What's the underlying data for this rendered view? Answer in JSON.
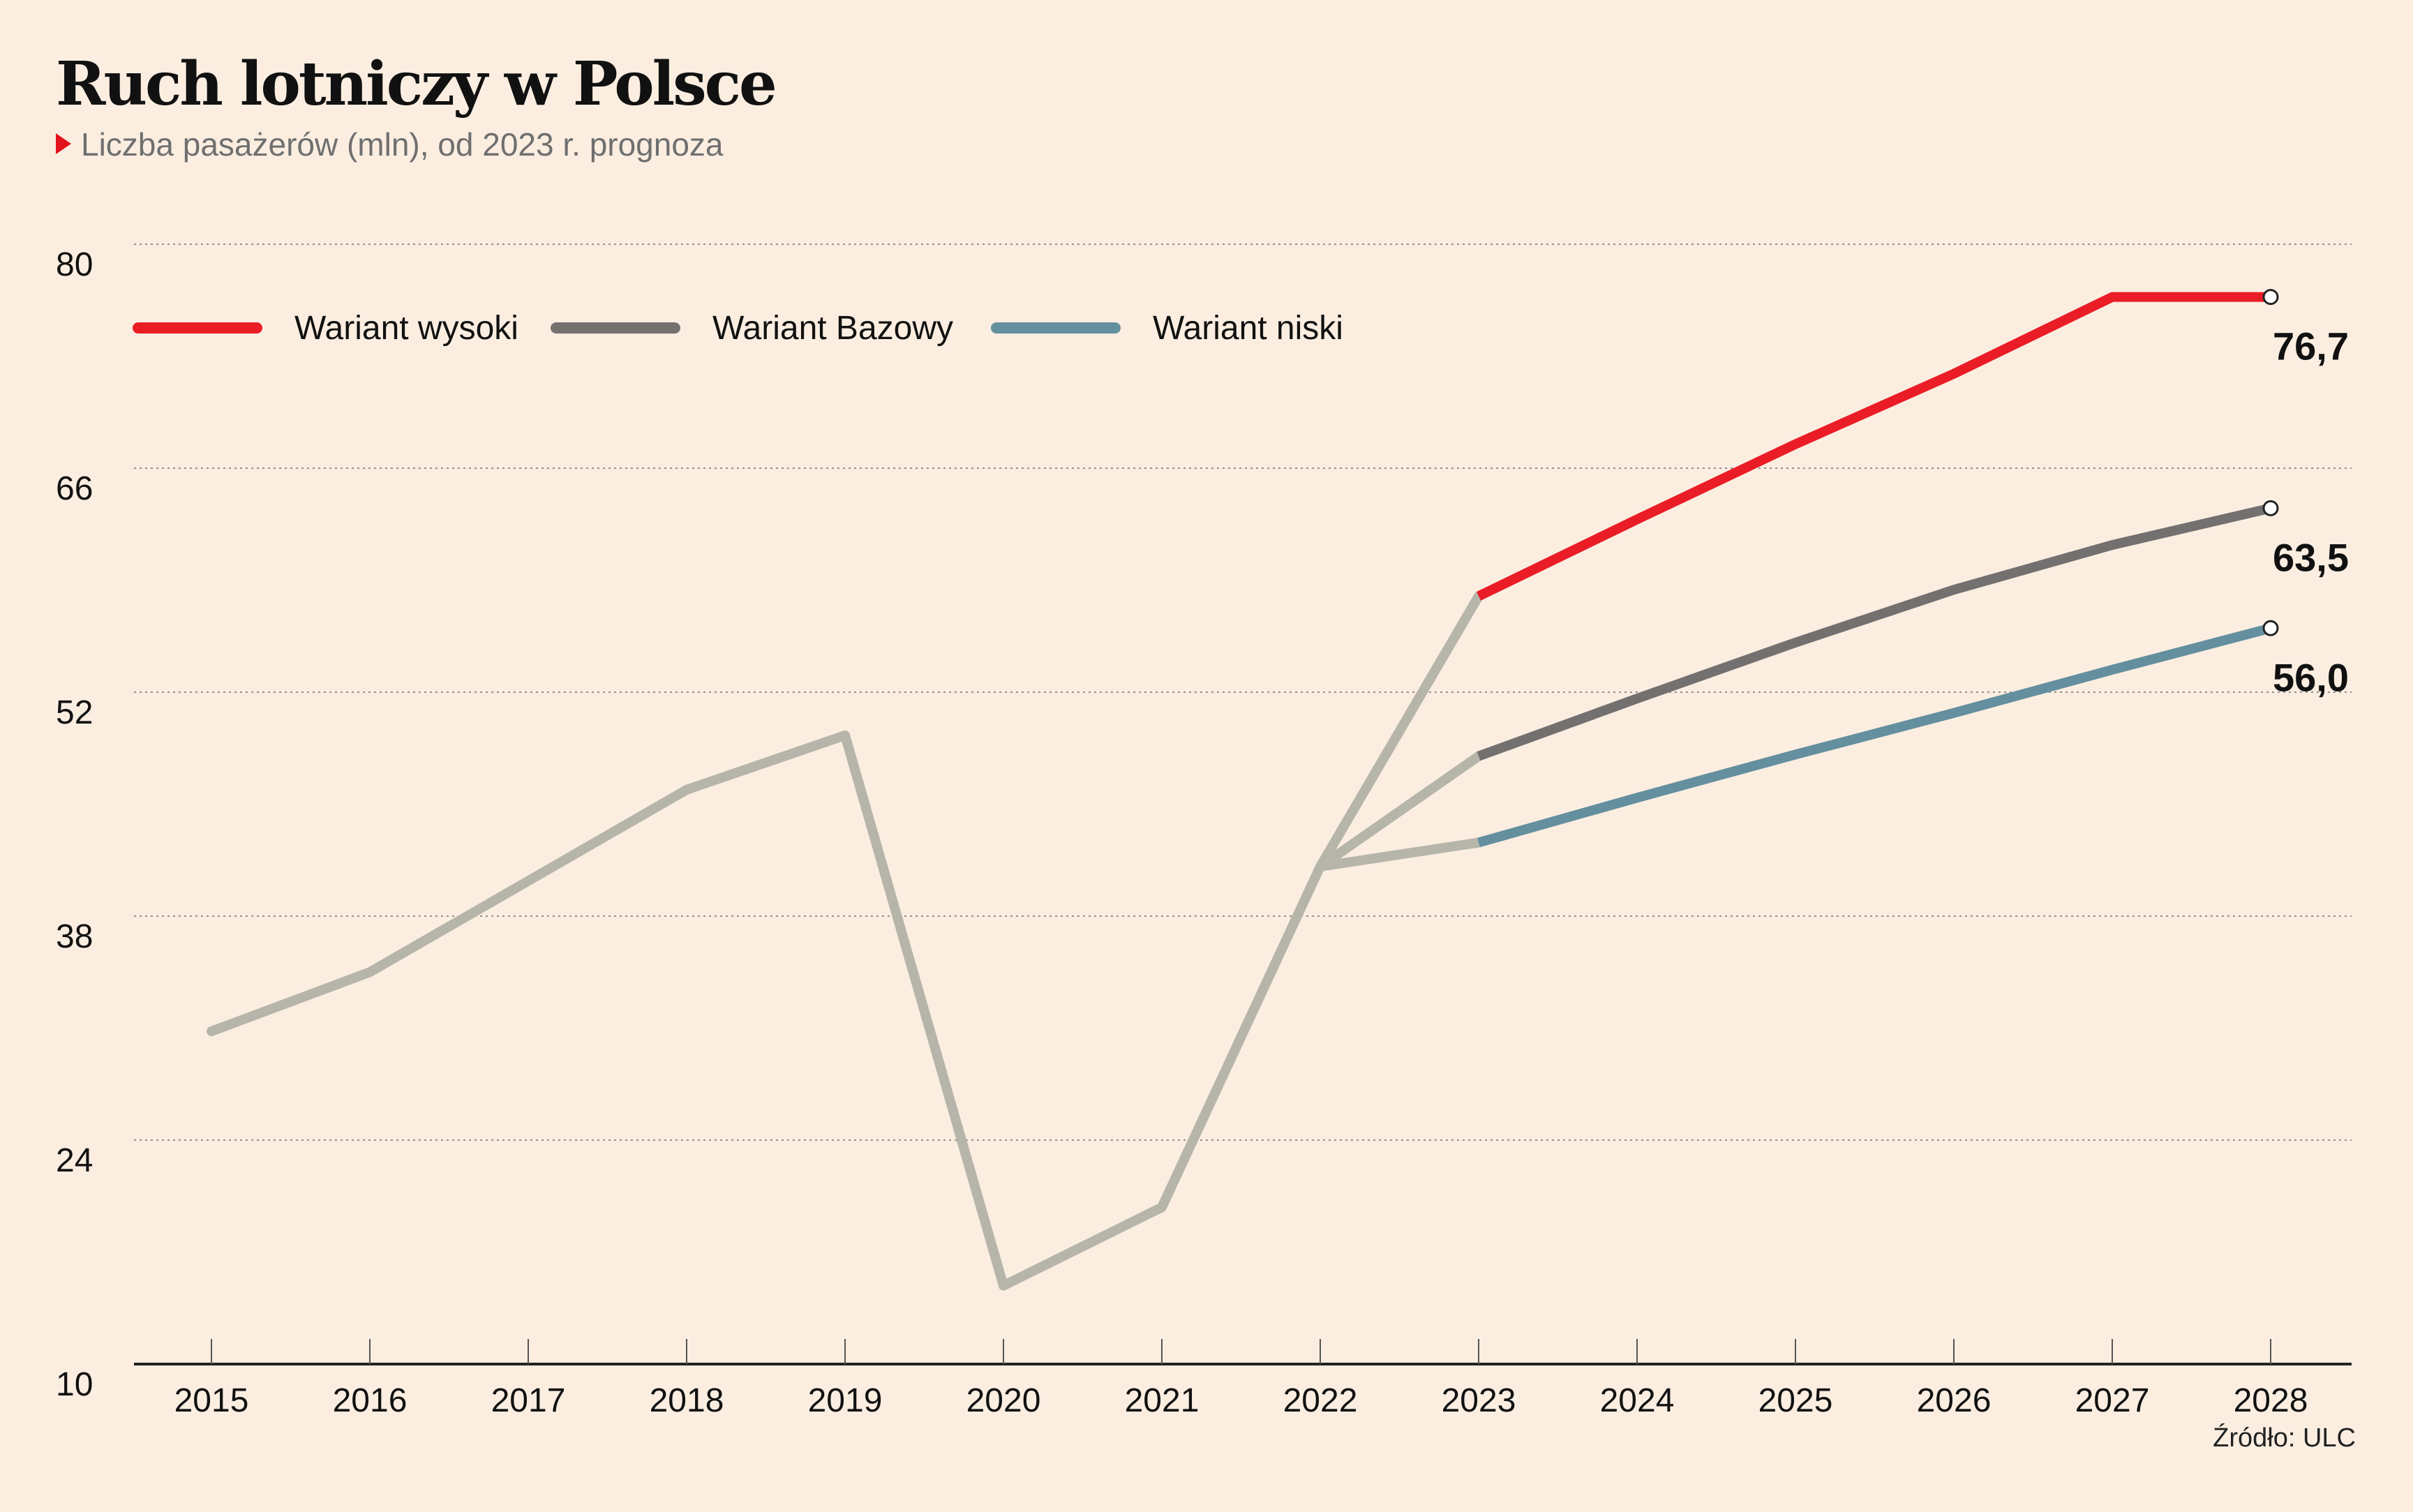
{
  "title": "Ruch lotniczy w Polsce",
  "subtitle": "Liczba pasażerów (mln), od 2023 r. prognoza",
  "source": "Źródło: ULC",
  "colors": {
    "background": "#fbeee1",
    "historical": "#b6b5aa",
    "high": "#ea1d27",
    "base": "#737070",
    "low": "#648f9e",
    "accent": "#e3131c"
  },
  "chart_data": {
    "type": "line",
    "x": [
      "2015",
      "2016",
      "2017",
      "2018",
      "2019",
      "2020",
      "2021",
      "2022",
      "2023",
      "2024",
      "2025",
      "2026",
      "2027",
      "2028"
    ],
    "ylim": [
      10,
      80
    ],
    "yticks": [
      10,
      24,
      38,
      52,
      66,
      80
    ],
    "grid": true,
    "legend_position": "top-left",
    "historical": {
      "x": [
        "2015",
        "2016",
        "2017",
        "2018",
        "2019",
        "2020",
        "2021",
        "2022"
      ],
      "values": [
        30.8,
        34.5,
        40.2,
        45.9,
        49.3,
        14.9,
        19.8,
        41.1
      ]
    },
    "series": [
      {
        "name": "Wariant wysoki",
        "key": "high",
        "x": [
          "2022",
          "2023",
          "2024",
          "2025",
          "2026",
          "2027",
          "2028"
        ],
        "values": [
          41.1,
          58.0,
          62.8,
          67.5,
          71.9,
          76.7,
          76.7
        ],
        "end_label": "76,7"
      },
      {
        "name": "Wariant Bazowy",
        "key": "base",
        "x": [
          "2022",
          "2023",
          "2024",
          "2025",
          "2026",
          "2027",
          "2028"
        ],
        "values": [
          41.1,
          48.0,
          51.6,
          55.1,
          58.4,
          61.2,
          63.5
        ],
        "end_label": "63,5"
      },
      {
        "name": "Wariant niski",
        "key": "low",
        "x": [
          "2022",
          "2023",
          "2024",
          "2025",
          "2026",
          "2027",
          "2028"
        ],
        "values": [
          41.1,
          42.6,
          45.4,
          48.1,
          50.7,
          53.4,
          56.0
        ],
        "end_label": "56,0"
      }
    ]
  }
}
